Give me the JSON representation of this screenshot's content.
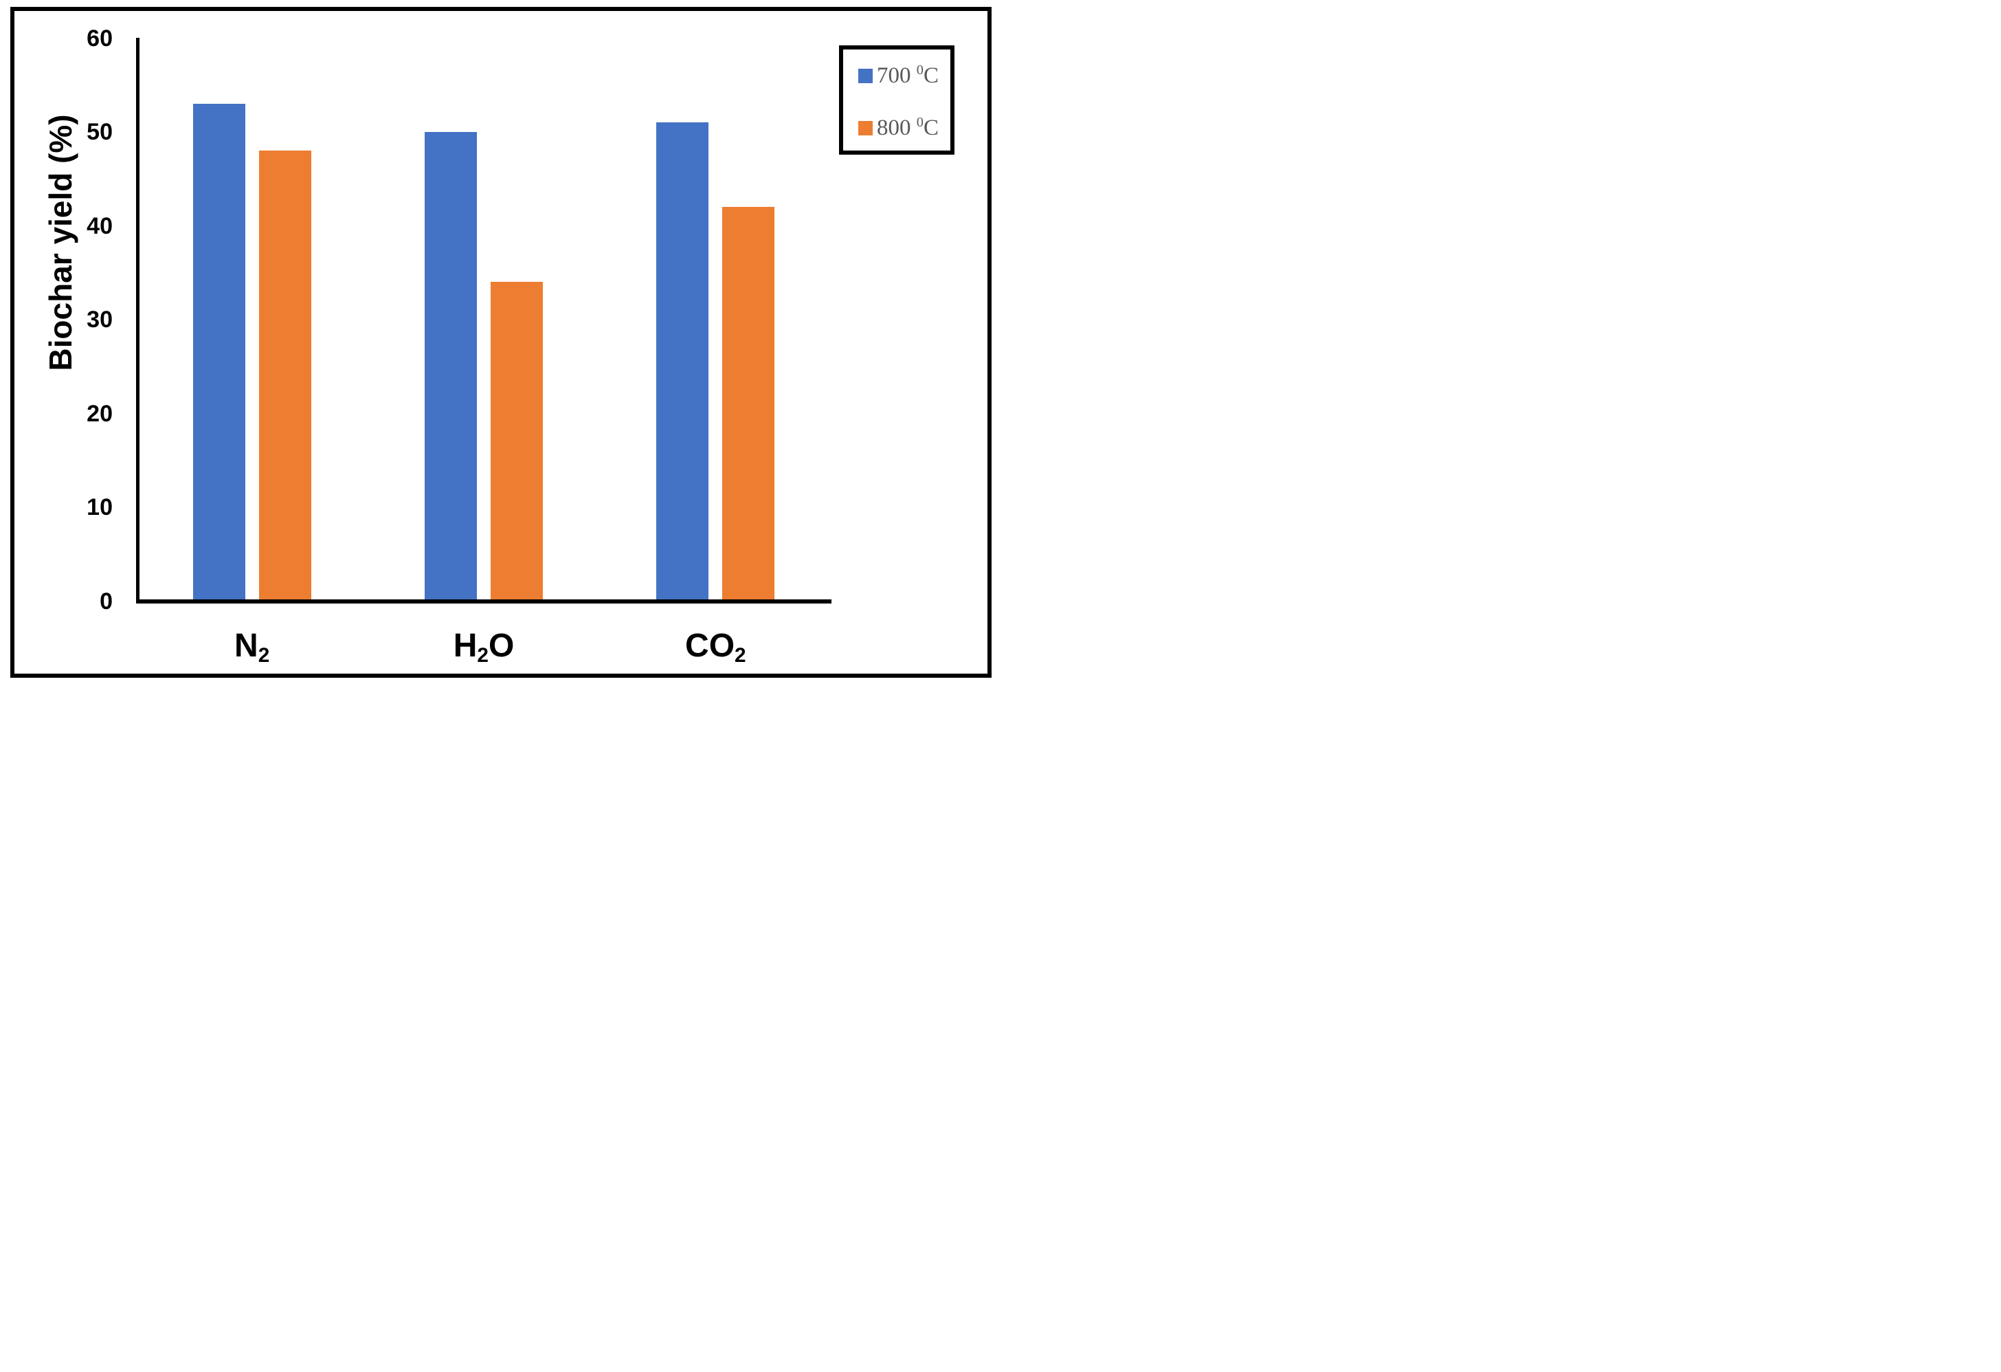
{
  "figure": {
    "background": "#ffffff",
    "border_color": "#000000",
    "axis_color": "#000000",
    "tick_label_color": "#000000",
    "legend_text_color": "#595959"
  },
  "chart_data": {
    "type": "bar",
    "title": "",
    "xlabel": "",
    "ylabel": "Biochar yield (%)",
    "ylim": [
      0,
      60
    ],
    "ytick_step": 10,
    "ytick_labels": [
      "0",
      "10",
      "20",
      "30",
      "40",
      "50",
      "60"
    ],
    "grid": false,
    "legend_position": "top-right",
    "categories": [
      "N₂",
      "H₂O",
      "CO₂"
    ],
    "category_segments": [
      [
        {
          "t": "N"
        },
        {
          "t": "2",
          "sub": true
        }
      ],
      [
        {
          "t": "H"
        },
        {
          "t": "2",
          "sub": true
        },
        {
          "t": "O"
        }
      ],
      [
        {
          "t": "CO"
        },
        {
          "t": "2",
          "sub": true
        }
      ]
    ],
    "series": [
      {
        "name": "700 ⁰C",
        "name_segments": [
          {
            "t": "700 "
          },
          {
            "t": "0",
            "sup": true
          },
          {
            "t": "C"
          }
        ],
        "color": "#4472C4",
        "values": [
          53,
          50,
          51
        ]
      },
      {
        "name": "800 ⁰C",
        "name_segments": [
          {
            "t": "800 "
          },
          {
            "t": "0",
            "sup": true
          },
          {
            "t": "C"
          }
        ],
        "color": "#ED7D31",
        "values": [
          48,
          34,
          42
        ]
      }
    ]
  }
}
